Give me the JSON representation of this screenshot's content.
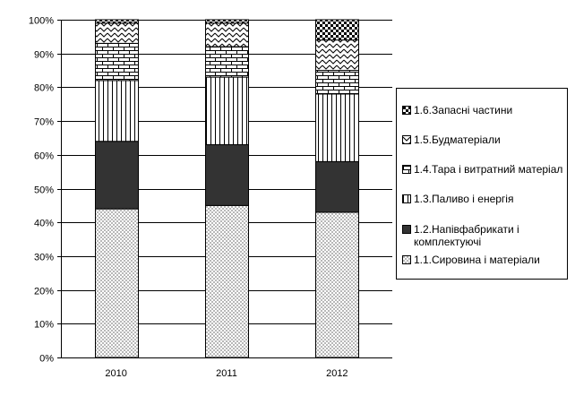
{
  "chart_data": {
    "type": "bar",
    "stacked": true,
    "percent": true,
    "categories": [
      "2010",
      "2011",
      "2012"
    ],
    "y_ticks": [
      "0%",
      "10%",
      "20%",
      "30%",
      "40%",
      "50%",
      "60%",
      "70%",
      "80%",
      "90%",
      "100%"
    ],
    "ylim": [
      0,
      100
    ],
    "grid": true,
    "legend_position": "right",
    "series": [
      {
        "name": "1.1.Сировина і матеріали",
        "pattern": "checker",
        "values": [
          44,
          45,
          43
        ]
      },
      {
        "name": "1.2.Напівфабрикати і комплектуючі",
        "pattern": "solid-dark",
        "values": [
          20,
          18,
          15
        ]
      },
      {
        "name": "1.3.Паливо і енергія",
        "pattern": "vertical-lines",
        "values": [
          18,
          20,
          20
        ]
      },
      {
        "name": "1.4.Тара і витратний матеріал",
        "pattern": "bricks",
        "values": [
          11,
          9,
          7
        ]
      },
      {
        "name": "1.5.Будматеріали",
        "pattern": "zigzag",
        "values": [
          6,
          7,
          9
        ]
      },
      {
        "name": "1.6.Запасні частини",
        "pattern": "big-checker",
        "values": [
          1,
          1,
          6
        ]
      }
    ],
    "colors": {
      "dark": "#333333",
      "checker": "#bbbbbb",
      "grid": "#000000",
      "background": "#ffffff"
    }
  }
}
